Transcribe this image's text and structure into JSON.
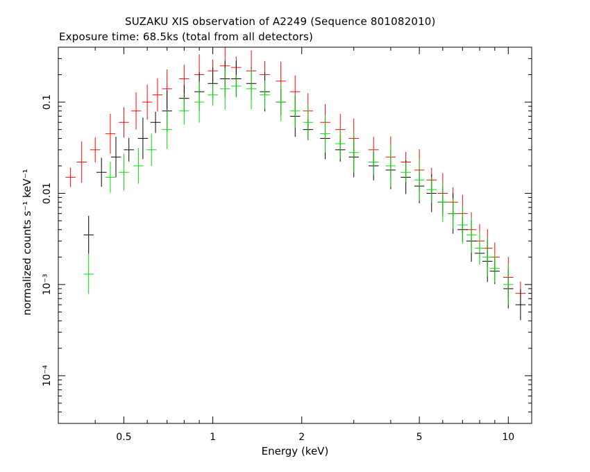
{
  "chart_data": {
    "type": "scatter",
    "title": "SUZAKU XIS observation of A2249 (Sequence 801082010)",
    "subtitle": "Exposure time: 68.5ks (total from all detectors)",
    "xlabel": "Energy (keV)",
    "ylabel": "normalized counts s⁻¹ keV⁻¹",
    "x_scale": "log",
    "y_scale": "log",
    "xlim": [
      0.3,
      12
    ],
    "ylim": [
      3e-05,
      0.4
    ],
    "x_ticks": [
      {
        "value": 0.5,
        "label": "0.5"
      },
      {
        "value": 1,
        "label": "1"
      },
      {
        "value": 2,
        "label": "2"
      },
      {
        "value": 5,
        "label": "5"
      },
      {
        "value": 10,
        "label": "10"
      }
    ],
    "y_ticks": [
      {
        "value": 0.1,
        "label": "0.1"
      },
      {
        "value": 0.01,
        "label": "0.01"
      },
      {
        "value": 0.001,
        "label": "10⁻³"
      },
      {
        "value": 0.0001,
        "label": "10⁻⁴"
      }
    ],
    "grid": false,
    "series": [
      {
        "color": "#ff0000",
        "x": [
          0.33,
          0.36,
          0.4,
          0.45,
          0.5,
          0.55,
          0.6,
          0.65,
          0.7,
          0.8,
          0.9,
          1.0,
          1.1,
          1.2,
          1.35,
          1.5,
          1.7,
          1.9,
          2.1,
          2.4,
          2.7,
          3.0,
          3.5,
          4.0,
          4.5,
          5.0,
          5.5,
          6.0,
          6.5,
          7.0,
          7.5,
          8.0,
          8.5,
          9.0,
          10.0,
          11.0
        ],
        "y": [
          0.015,
          0.022,
          0.03,
          0.045,
          0.06,
          0.08,
          0.1,
          0.12,
          0.14,
          0.18,
          0.2,
          0.22,
          0.25,
          0.24,
          0.22,
          0.2,
          0.17,
          0.13,
          0.08,
          0.06,
          0.05,
          0.04,
          0.03,
          0.025,
          0.022,
          0.018,
          0.014,
          0.01,
          0.008,
          0.006,
          0.004,
          0.003,
          0.0025,
          0.002,
          0.0012,
          0.0008
        ]
      },
      {
        "color": "#000000",
        "x": [
          0.38,
          0.42,
          0.47,
          0.52,
          0.58,
          0.64,
          0.7,
          0.8,
          0.9,
          1.0,
          1.1,
          1.2,
          1.35,
          1.5,
          1.7,
          1.9,
          2.1,
          2.4,
          2.7,
          3.0,
          3.5,
          4.0,
          4.5,
          5.0,
          5.5,
          6.0,
          6.5,
          7.0,
          7.5,
          8.0,
          8.5,
          9.0,
          10.0,
          11.0
        ],
        "y": [
          0.0035,
          0.017,
          0.025,
          0.03,
          0.04,
          0.06,
          0.08,
          0.11,
          0.13,
          0.16,
          0.18,
          0.18,
          0.16,
          0.13,
          0.1,
          0.07,
          0.05,
          0.04,
          0.03,
          0.025,
          0.02,
          0.018,
          0.015,
          0.012,
          0.01,
          0.008,
          0.006,
          0.004,
          0.003,
          0.0022,
          0.0018,
          0.0014,
          0.0009,
          0.0006
        ]
      },
      {
        "color": "#00dd00",
        "x": [
          0.38,
          0.45,
          0.5,
          0.56,
          0.62,
          0.7,
          0.8,
          0.9,
          1.0,
          1.1,
          1.2,
          1.35,
          1.5,
          1.7,
          1.9,
          2.1,
          2.4,
          2.7,
          3.0,
          3.5,
          4.0,
          4.5,
          5.0,
          5.5,
          6.0,
          6.5,
          7.0,
          7.5,
          8.0,
          8.5,
          9.0,
          10.0
        ],
        "y": [
          0.0013,
          0.015,
          0.017,
          0.02,
          0.03,
          0.05,
          0.08,
          0.1,
          0.12,
          0.14,
          0.15,
          0.14,
          0.12,
          0.1,
          0.08,
          0.06,
          0.045,
          0.035,
          0.028,
          0.022,
          0.02,
          0.017,
          0.014,
          0.011,
          0.008,
          0.006,
          0.0045,
          0.0035,
          0.0025,
          0.002,
          0.0015,
          0.001
        ]
      }
    ]
  }
}
